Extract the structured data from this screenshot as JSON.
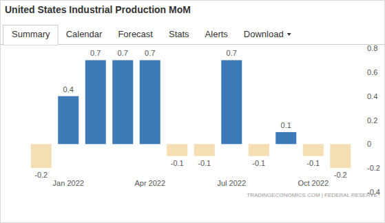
{
  "header": {
    "tabs": [
      "Summary",
      "Calendar",
      "Forecast",
      "Stats",
      "Alerts",
      "Download"
    ]
  },
  "chart_data": {
    "type": "bar",
    "title": "United States Industrial Production MoM",
    "categories": [
      null,
      "Jan 2022",
      null,
      null,
      "Apr 2022",
      null,
      null,
      "Jul 2022",
      null,
      null,
      "Oct 2022",
      null
    ],
    "values": [
      -0.2,
      0.4,
      0.7,
      0.7,
      0.7,
      -0.1,
      -0.1,
      0.7,
      -0.1,
      0.1,
      -0.1,
      -0.2
    ],
    "colors": [
      "#f5deb3",
      "#3c7bb8",
      "#3c7bb8",
      "#3c7bb8",
      "#3c7bb8",
      "#f5deb3",
      "#f5deb3",
      "#3c7bb8",
      "#f5deb3",
      "#3c7bb8",
      "#f5deb3",
      "#f5deb3"
    ],
    "ylim": [
      -0.4,
      0.8
    ],
    "yticks": [
      -0.4,
      -0.2,
      0,
      0.2,
      0.4,
      0.6,
      0.8
    ],
    "grid": false,
    "data_labels": true,
    "source": "TRADINGECONOMICS.COM | FEDERAL RESERVE"
  }
}
